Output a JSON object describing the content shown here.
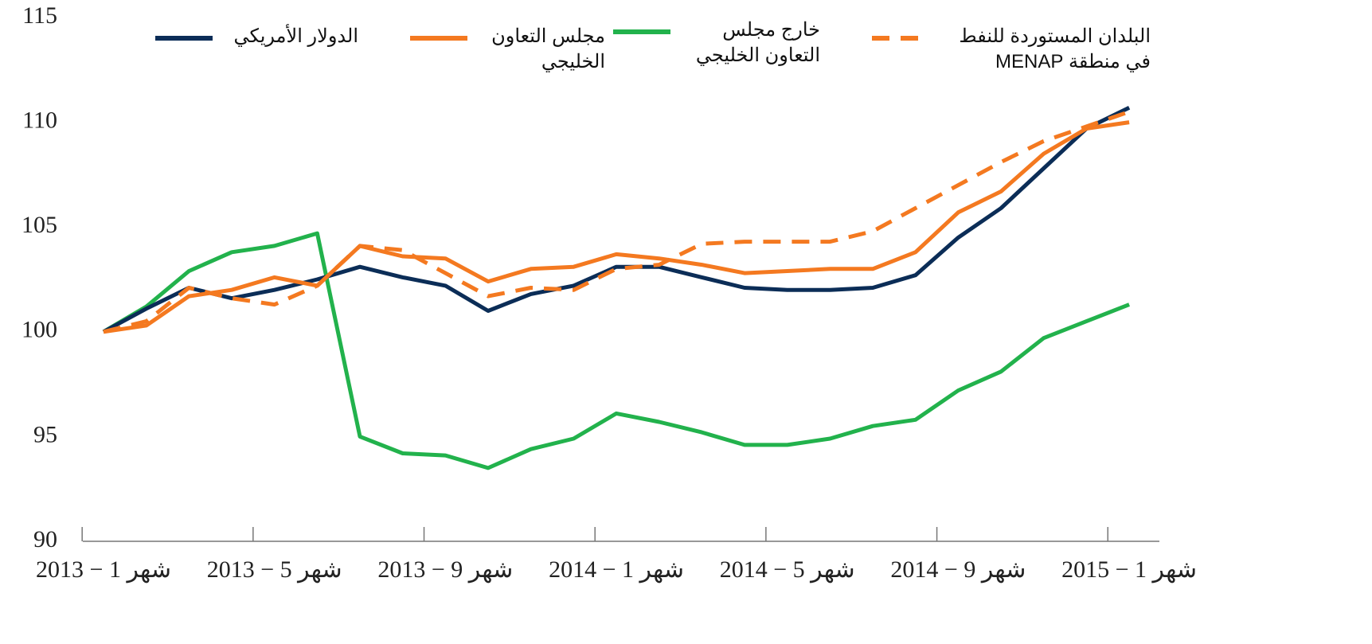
{
  "chart_data": {
    "type": "line",
    "categories": [
      "شهر 1 − 2013",
      null,
      null,
      null,
      "شهر 5 − 2013",
      null,
      null,
      null,
      "شهر 9 − 2013",
      null,
      null,
      null,
      "شهر 1 − 2014",
      null,
      null,
      null,
      "شهر 5 − 2014",
      null,
      null,
      null,
      "شهر 9 − 2014",
      null,
      null,
      null,
      "شهر 1 − 2015"
    ],
    "series": [
      {
        "name": "الدولار الأمريكي",
        "color": "#0b2d57",
        "dashed": false,
        "values": [
          100,
          101.1,
          102.1,
          101.6,
          102.0,
          102.5,
          103.1,
          102.6,
          102.2,
          101.0,
          101.8,
          102.2,
          103.1,
          103.1,
          102.6,
          102.1,
          102.0,
          102.0,
          102.1,
          102.7,
          104.5,
          105.9,
          107.8,
          109.7,
          110.7
        ]
      },
      {
        "name": "مجلس التعاون الخليجي",
        "color": "#f47920",
        "dashed": false,
        "values": [
          100,
          100.3,
          101.7,
          102.0,
          102.6,
          102.2,
          104.1,
          103.6,
          103.5,
          102.4,
          103.0,
          103.1,
          103.7,
          103.5,
          103.2,
          102.8,
          102.9,
          103.0,
          103.0,
          103.8,
          105.7,
          106.7,
          108.5,
          109.7,
          110.0
        ]
      },
      {
        "name": "خارج مجلس التعاون الخليجي",
        "color": "#22b24c",
        "dashed": false,
        "values": [
          100,
          101.2,
          102.9,
          103.8,
          104.1,
          104.7,
          95.0,
          94.2,
          94.1,
          93.5,
          94.4,
          94.9,
          96.1,
          95.7,
          95.2,
          94.6,
          94.6,
          94.9,
          95.5,
          95.8,
          97.2,
          98.1,
          99.7,
          100.5,
          101.3
        ]
      },
      {
        "name": "البلدان المستوردة للنفط في منطقة MENAP",
        "color": "#f47920",
        "dashed": true,
        "values": [
          100,
          100.5,
          102.1,
          101.6,
          101.3,
          102.2,
          104.1,
          103.9,
          102.8,
          101.7,
          102.1,
          102.0,
          103.0,
          103.2,
          104.2,
          104.3,
          104.3,
          104.3,
          104.8,
          105.9,
          107.0,
          108.1,
          109.1,
          109.8,
          110.5
        ]
      }
    ],
    "ylim": [
      90,
      115
    ],
    "yticks": [
      90,
      95,
      100,
      105,
      110,
      115
    ],
    "grid": false
  }
}
